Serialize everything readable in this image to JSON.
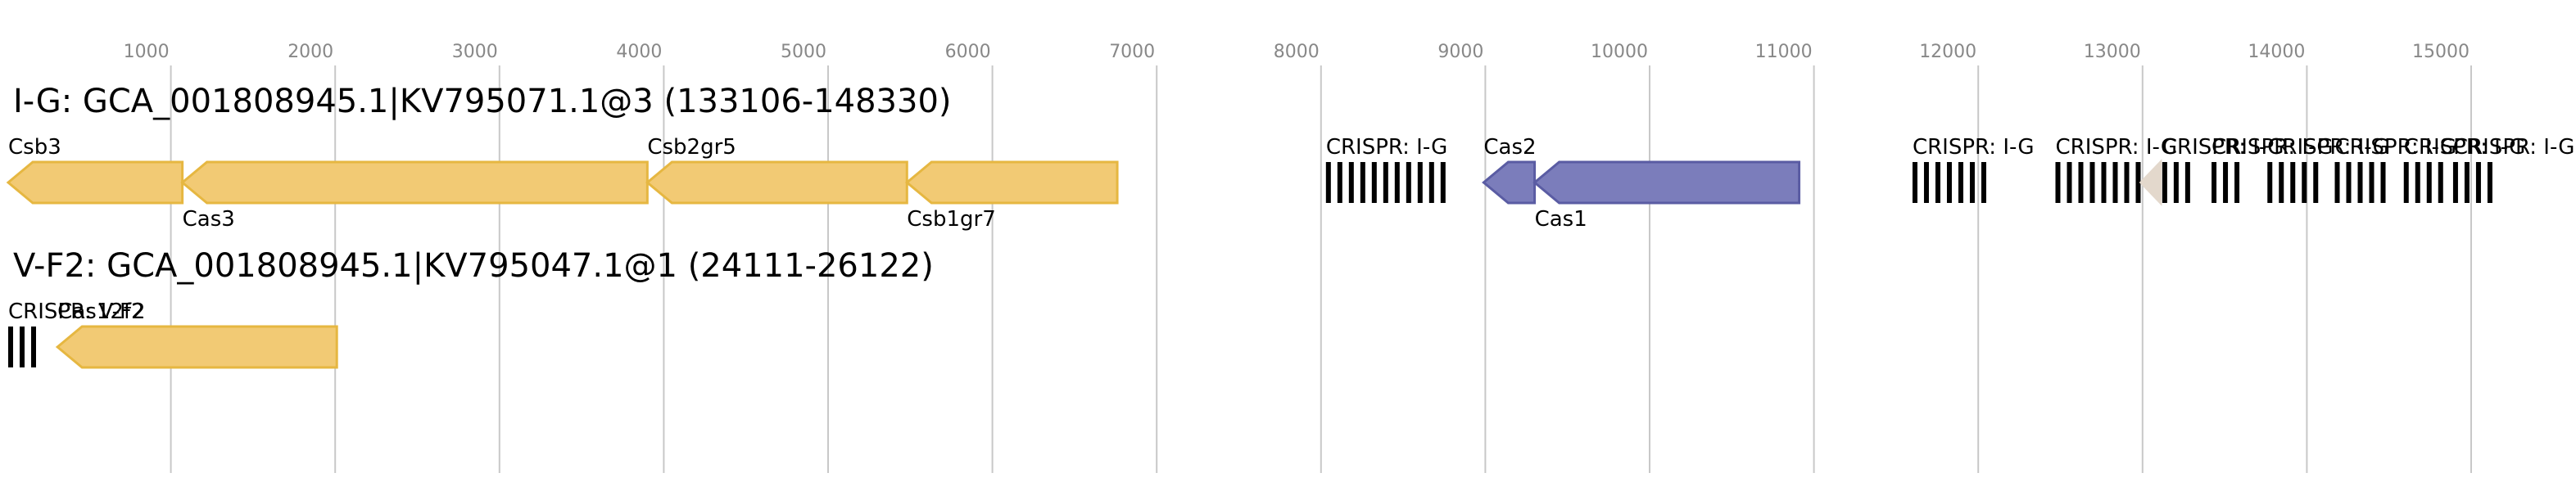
{
  "axis": {
    "ticks": [
      1000,
      2000,
      3000,
      4000,
      5000,
      6000,
      7000,
      8000,
      9000,
      10000,
      11000,
      12000,
      13000,
      14000,
      15000
    ]
  },
  "tracks": [
    {
      "title": "I-G: GCA_001808945.1|KV795071.1@3 (133106-148330)",
      "features": [
        {
          "label": "Csb3",
          "start": 10,
          "end": 1070,
          "kind": "gene",
          "color": "#f2ca74",
          "stroke": "#e6b741",
          "label_side": "above"
        },
        {
          "label": "Cas3",
          "start": 1070,
          "end": 3900,
          "kind": "gene",
          "color": "#f2ca74",
          "stroke": "#e6b741",
          "label_side": "below"
        },
        {
          "label": "Csb2gr5",
          "start": 3900,
          "end": 5480,
          "kind": "gene",
          "color": "#f2ca74",
          "stroke": "#e6b741",
          "label_side": "above"
        },
        {
          "label": "Csb1gr7",
          "start": 5480,
          "end": 6760,
          "kind": "gene",
          "color": "#f2ca74",
          "stroke": "#e6b741",
          "label_side": "below"
        },
        {
          "label": "CRISPR: I-G",
          "start": 8030,
          "end": 8780,
          "kind": "crispr",
          "label_side": "above"
        },
        {
          "label": "Cas2",
          "start": 8990,
          "end": 9300,
          "kind": "gene",
          "color": "#7b7dbb",
          "stroke": "#5a5ca3",
          "label_side": "above"
        },
        {
          "label": "Cas1",
          "start": 9300,
          "end": 10910,
          "kind": "gene",
          "color": "#7b7dbb",
          "stroke": "#5a5ca3",
          "label_side": "below"
        },
        {
          "label": "CRISPR: I-G",
          "start": 11600,
          "end": 12060,
          "kind": "crispr",
          "label_side": "above"
        },
        {
          "label": "CRISPR: I-G",
          "start": 12470,
          "end": 12990,
          "kind": "crispr",
          "label_side": "above"
        },
        {
          "start": 12990,
          "end": 13110,
          "kind": "gene",
          "color": "#e3d8cc",
          "stroke": "#e3d8cc"
        },
        {
          "label": "CRISPR: I-G",
          "start": 13120,
          "end": 13300,
          "kind": "crispr",
          "label_side": "above"
        },
        {
          "label": "CRISPR: I-G",
          "start": 13420,
          "end": 13650,
          "kind": "crispr",
          "label_side": "above"
        },
        {
          "label": "CRISPR: I-G",
          "start": 13760,
          "end": 14070,
          "kind": "crispr",
          "label_side": "above"
        },
        {
          "label": "CRISPR: I-G",
          "start": 14170,
          "end": 14490,
          "kind": "crispr",
          "label_side": "above"
        },
        {
          "label": "CRISPR: I-G",
          "start": 14590,
          "end": 14840,
          "kind": "crispr",
          "label_side": "above"
        },
        {
          "label": "CRISPR: I-G",
          "start": 14890,
          "end": 15190,
          "kind": "crispr",
          "label_side": "above"
        }
      ]
    },
    {
      "title": "V-F2: GCA_001808945.1|KV795047.1@1 (24111-26122)",
      "features": [
        {
          "label": "CRISPR: V-F2",
          "start": 10,
          "end": 210,
          "kind": "crispr",
          "label_side": "above"
        },
        {
          "label": "Cas12f2",
          "start": 310,
          "end": 2010,
          "kind": "gene",
          "color": "#f2ca74",
          "stroke": "#e6b741",
          "label_side": "above"
        }
      ]
    }
  ]
}
